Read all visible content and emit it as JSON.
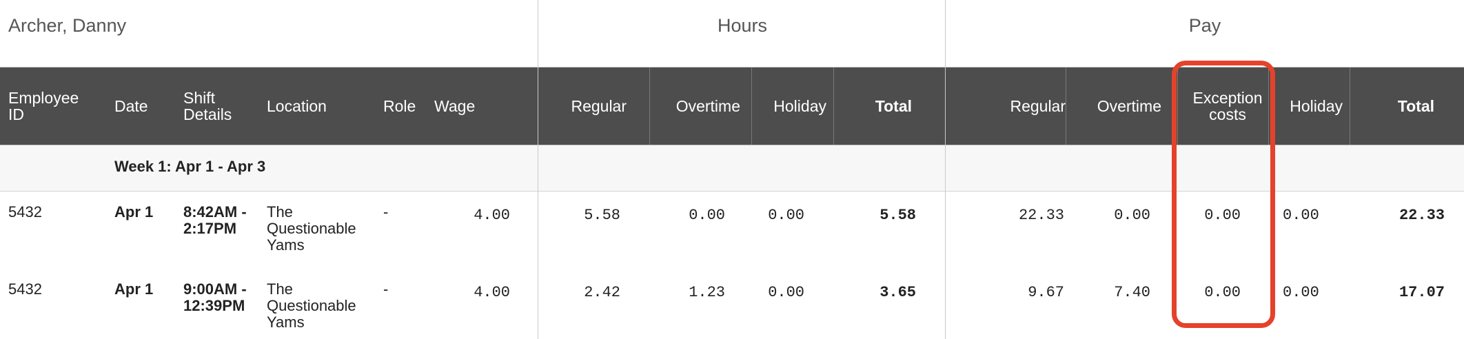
{
  "employee_name": "Archer, Danny",
  "groups": {
    "hours": "Hours",
    "pay": "Pay"
  },
  "columns": {
    "employee_id": "Employee ID",
    "date": "Date",
    "shift_details": "Shift Details",
    "location": "Location",
    "role": "Role",
    "wage": "Wage",
    "hours_regular": "Regular",
    "hours_overtime": "Overtime",
    "hours_holiday": "Holiday",
    "hours_total": "Total",
    "pay_regular": "Regular",
    "pay_overtime": "Overtime",
    "pay_exception": "Exception costs",
    "pay_holiday": "Holiday",
    "pay_total": "Total"
  },
  "week_label": "Week 1: Apr 1 - Apr 3",
  "rows": [
    {
      "employee_id": "5432",
      "date": "Apr 1",
      "shift": "8:42AM - 2:17PM",
      "location": "The Questionable Yams",
      "role": "-",
      "wage": "4.00",
      "hours_regular": "5.58",
      "hours_overtime": "0.00",
      "hours_holiday": "0.00",
      "hours_total": "5.58",
      "pay_regular": "22.33",
      "pay_overtime": "0.00",
      "pay_exception": "0.00",
      "pay_holiday": "0.00",
      "pay_total": "22.33"
    },
    {
      "employee_id": "5432",
      "date": "Apr 1",
      "shift": "9:00AM - 12:39PM",
      "location": "The Questionable Yams",
      "role": "-",
      "wage": "4.00",
      "hours_regular": "2.42",
      "hours_overtime": "1.23",
      "hours_holiday": "0.00",
      "hours_total": "3.65",
      "pay_regular": "9.67",
      "pay_overtime": "7.40",
      "pay_exception": "0.00",
      "pay_holiday": "0.00",
      "pay_total": "17.07"
    }
  ],
  "colors": {
    "header_bg": "#4d4d4d",
    "highlight": "#e5422b",
    "week_bg": "#f7f7f7"
  }
}
